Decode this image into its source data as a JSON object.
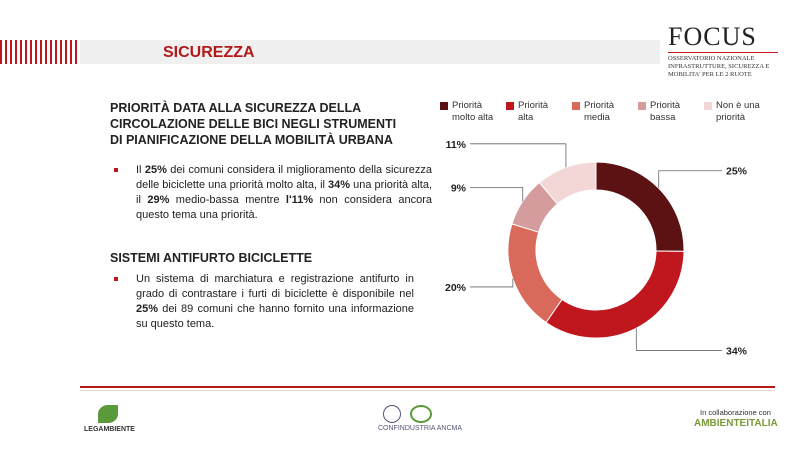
{
  "header": {
    "section": "SICUREZZA",
    "logo_title": "FOCUS",
    "logo_subtitle": "OSSERVATORIO NAZIONALE INFRASTRUTTURE, SICUREZZA E MOBILITA' PER LE 2 RUOTE"
  },
  "body": {
    "heading_1": "PRIORITÀ DATA ALLA SICUREZZA DELLA CIRCOLAZIONE DELLE BICI NEGLI STRUMENTI DI PIANIFICAZIONE DELLA MOBILITÀ URBANA",
    "paragraph_1": [
      "Il ",
      "25%",
      " dei comuni considera il miglioramento della sicurezza delle biciclette una priorità molto alta, il ",
      "34%",
      " una priorità alta, il ",
      "29%",
      " medio-bassa mentre ",
      "l'11%",
      " non considera ancora questo tema una priorità."
    ],
    "heading_2": "SISTEMI ANTIFURTO BICICLETTE",
    "paragraph_2": [
      "Un sistema di marchiatura e registrazione antifurto in grado di contrastare i furti di biciclette è disponibile nel ",
      "25%",
      " dei 89 comuni che hanno fornito una informazione su questo tema."
    ]
  },
  "chart_data": {
    "type": "donut",
    "categories": [
      "Priorità molto alta",
      "Priorità alta",
      "Priorità media",
      "Priorità bassa",
      "Non è una priorità"
    ],
    "values": [
      25,
      34,
      20,
      9,
      11
    ],
    "value_labels": [
      "25%",
      "34%",
      "20%",
      "9%",
      "11%"
    ],
    "colors": [
      "#5c1212",
      "#c0161e",
      "#d9695a",
      "#d49c9c",
      "#f3d7d6"
    ],
    "legend": "top"
  },
  "footer": {
    "left": "LEGAMBIENTE",
    "center": "CONFINDUSTRIA ANCMA",
    "right_caption": "In collaborazione con",
    "right": "AMBIENTEITALIA"
  }
}
